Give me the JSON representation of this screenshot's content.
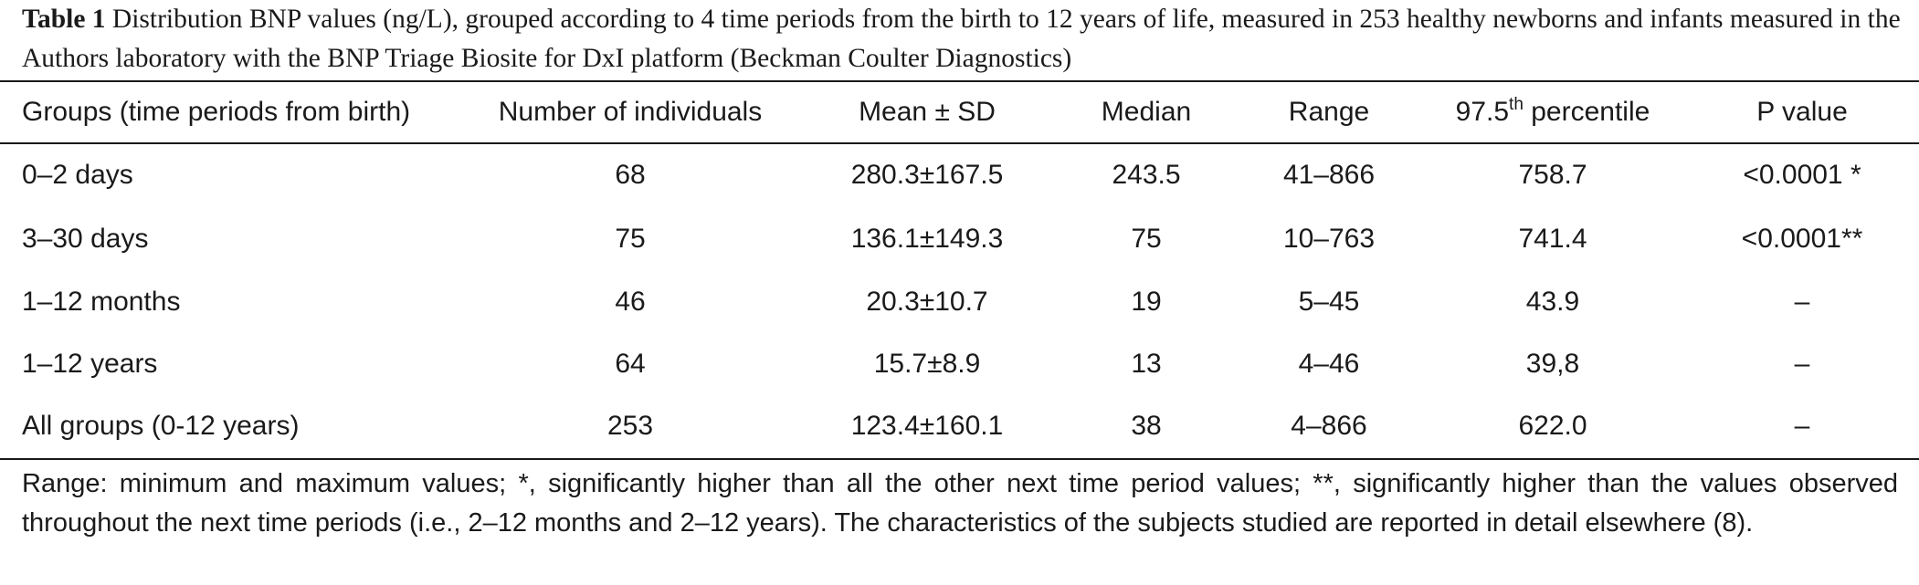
{
  "caption": {
    "label": "Table 1",
    "text": "Distribution BNP values (ng/L), grouped according to 4 time periods from the birth to 12 years of life, measured in 253 healthy newborns and infants measured in the Authors laboratory with the BNP Triage Biosite for DxI platform (Beckman Coulter Diagnostics)"
  },
  "table": {
    "headers": {
      "groups": "Groups (time periods from birth)",
      "n": "Number of individuals",
      "mean_sd": "Mean ± SD",
      "median": "Median",
      "range": "Range",
      "percentile_num": "97.5",
      "percentile_sup": "th",
      "percentile_text": " percentile",
      "p_value": "P value"
    },
    "rows": [
      {
        "group": "0–2 days",
        "n": "68",
        "mean_sd": "280.3±167.5",
        "median": "243.5",
        "range": "41–866",
        "percentile": "758.7",
        "p_value": "<0.0001 *"
      },
      {
        "group": "3–30 days",
        "n": "75",
        "mean_sd": "136.1±149.3",
        "median": "75",
        "range": "10–763",
        "percentile": "741.4",
        "p_value": "<0.0001**"
      },
      {
        "group": "1–12 months",
        "n": "46",
        "mean_sd": "20.3±10.7",
        "median": "19",
        "range": "5–45",
        "percentile": "43.9",
        "p_value": "–"
      },
      {
        "group": "1–12 years",
        "n": "64",
        "mean_sd": "15.7±8.9",
        "median": "13",
        "range": "4–46",
        "percentile": "39,8",
        "p_value": "–"
      },
      {
        "group": "All groups (0-12 years)",
        "n": "253",
        "mean_sd": "123.4±160.1",
        "median": "38",
        "range": "4–866",
        "percentile": "622.0",
        "p_value": "–"
      }
    ]
  },
  "footnote": "Range: minimum and maximum values; *, significantly higher than all the other next time period values; **, significantly higher than the values observed throughout the next time periods (i.e., 2–12 months and 2–12 years). The characteristics of the subjects studied are reported in detail elsewhere (8)."
}
